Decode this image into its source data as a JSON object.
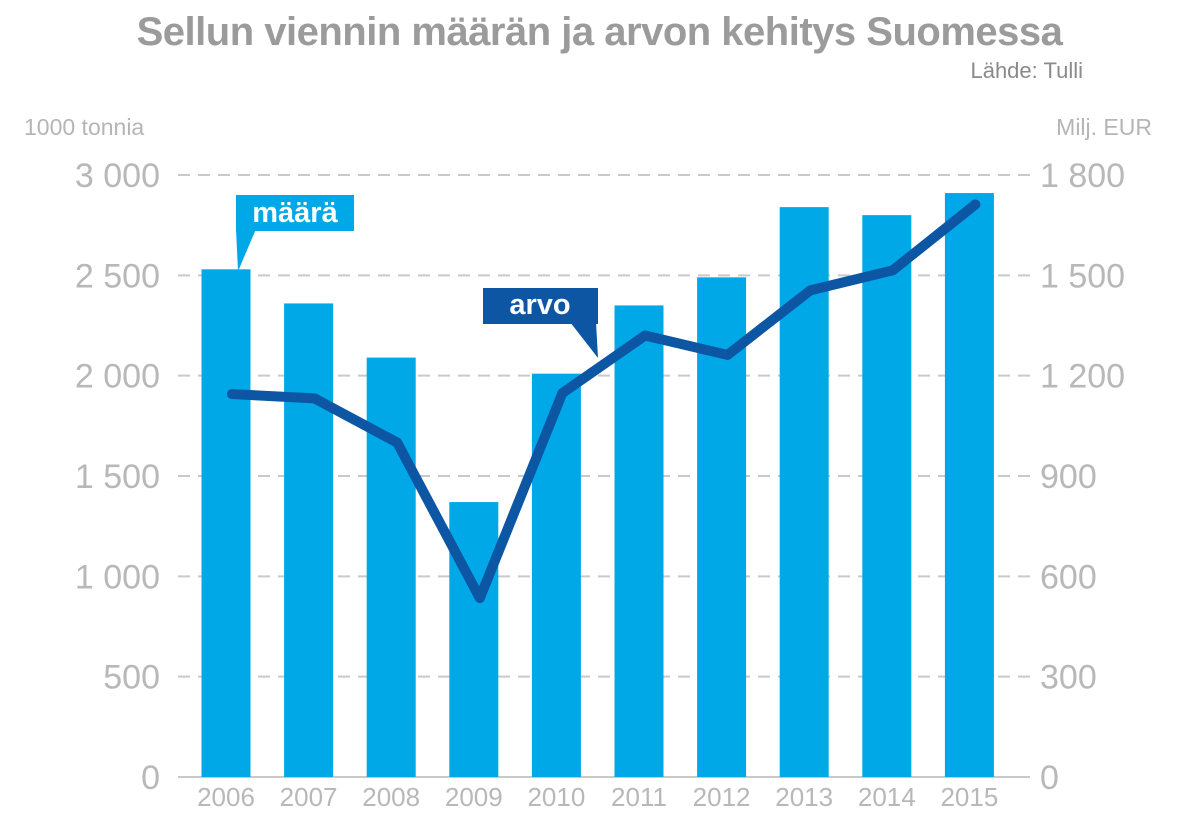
{
  "header": {
    "title": "Sellun viennin määrän ja arvon kehitys Suomessa",
    "source": "Lähde: Tulli"
  },
  "colors": {
    "bar": "#00a8e8",
    "line": "#0c56a3",
    "grid": "#c9c9c9",
    "tick": "#b8b8b8",
    "title": "#9b9b9b"
  },
  "chart_data": {
    "type": "bar",
    "title": "Sellun viennin määrän ja arvon kehitys Suomessa",
    "categories": [
      "2006",
      "2007",
      "2008",
      "2009",
      "2010",
      "2011",
      "2012",
      "2013",
      "2014",
      "2015"
    ],
    "y_left": {
      "label": "1000 tonnia",
      "range": [
        0,
        3000
      ],
      "ticks": [
        0,
        500,
        1000,
        1500,
        2000,
        2500,
        3000
      ],
      "tick_labels": [
        "0",
        "500",
        "1 000",
        "1 500",
        "2 000",
        "2 500",
        "3 000"
      ]
    },
    "y_right": {
      "label": "Milj. EUR",
      "range": [
        0,
        1800
      ],
      "ticks": [
        0,
        300,
        600,
        900,
        1200,
        1500,
        1800
      ],
      "tick_labels": [
        "0",
        "300",
        "600",
        "900",
        "1 200",
        "1 500",
        "1 800"
      ]
    },
    "grid": true,
    "series": [
      {
        "name": "määrä",
        "type": "bar",
        "axis": "left",
        "values": [
          2530,
          2360,
          2090,
          1370,
          2010,
          2350,
          2490,
          2840,
          2800,
          2910
        ]
      },
      {
        "name": "arvo",
        "type": "line",
        "axis": "right",
        "values": [
          1145,
          1132,
          1000,
          535,
          1148,
          1320,
          1262,
          1455,
          1515,
          1712
        ]
      }
    ]
  }
}
